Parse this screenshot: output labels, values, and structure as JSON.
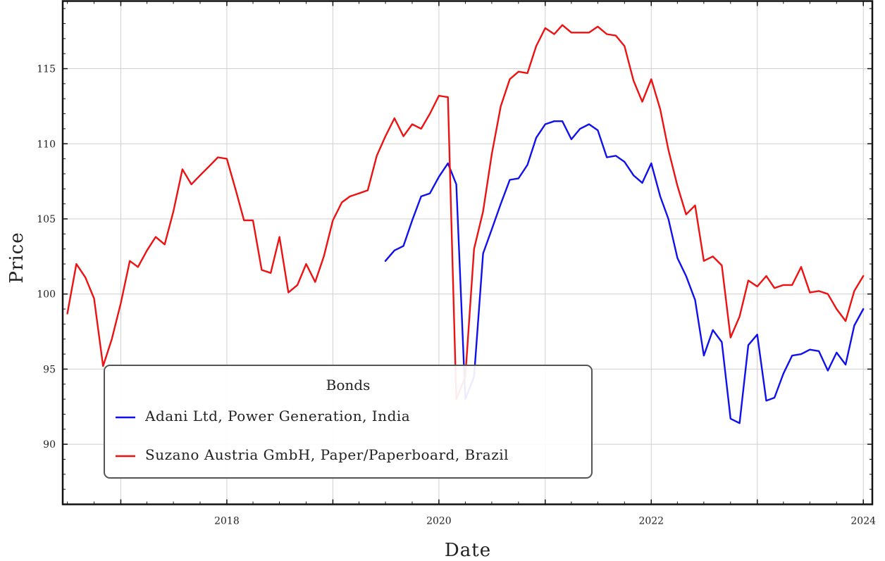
{
  "chart_data": {
    "type": "line",
    "xlabel": "Date",
    "ylabel": "Price",
    "x_ticks": [
      "2018",
      "2020",
      "2022",
      "2024"
    ],
    "y_ticks": [
      90,
      95,
      100,
      105,
      110,
      115
    ],
    "xlim": [
      "2016-06-15",
      "2024-02-01"
    ],
    "ylim": [
      86.0,
      119.5
    ],
    "grid": true,
    "legend": {
      "title": "Bonds",
      "placement": "lower-left"
    },
    "colors": {
      "adani": "#1010ee",
      "suzano": "#ee1111"
    },
    "series": [
      {
        "name": "Adani Ltd, Power Generation, India",
        "color": "#1010ee",
        "x": [
          "2019-07-01",
          "2019-08-01",
          "2019-09-01",
          "2019-10-01",
          "2019-11-01",
          "2019-12-01",
          "2020-01-01",
          "2020-02-01",
          "2020-03-01",
          "2020-04-01",
          "2020-05-01",
          "2020-06-01",
          "2020-07-01",
          "2020-08-01",
          "2020-09-01",
          "2020-10-01",
          "2020-11-01",
          "2020-12-01",
          "2021-01-01",
          "2021-02-01",
          "2021-03-01",
          "2021-04-01",
          "2021-05-01",
          "2021-06-01",
          "2021-07-01",
          "2021-08-01",
          "2021-09-01",
          "2021-10-01",
          "2021-11-01",
          "2021-12-01",
          "2022-01-01",
          "2022-02-01",
          "2022-03-01",
          "2022-04-01",
          "2022-05-01",
          "2022-06-01",
          "2022-07-01",
          "2022-08-01",
          "2022-09-01",
          "2022-10-01",
          "2022-11-01",
          "2022-12-01",
          "2023-01-01",
          "2023-02-01",
          "2023-03-01",
          "2023-04-01",
          "2023-05-01",
          "2023-06-01",
          "2023-07-01",
          "2023-08-01",
          "2023-09-01",
          "2023-10-01",
          "2023-11-01",
          "2023-12-01",
          "2024-01-01"
        ],
        "values": [
          102.2,
          102.9,
          103.2,
          104.9,
          106.5,
          106.7,
          107.8,
          108.7,
          107.3,
          93.0,
          94.5,
          102.7,
          104.3,
          106.0,
          107.6,
          107.7,
          108.6,
          110.4,
          111.3,
          111.5,
          111.5,
          110.3,
          111.0,
          111.3,
          110.9,
          109.1,
          109.2,
          108.8,
          107.9,
          107.4,
          108.7,
          106.5,
          105.0,
          102.4,
          101.2,
          99.6,
          95.9,
          97.6,
          96.8,
          91.7,
          91.4,
          96.6,
          97.3,
          92.9,
          93.1,
          94.7,
          95.9,
          96.0,
          96.3,
          96.2,
          94.9,
          96.1,
          95.3,
          97.9,
          99.0
        ]
      },
      {
        "name": "Suzano Austria GmbH, Paper/Paperboard, Brazil",
        "color": "#ee1111",
        "x": [
          "2016-07-01",
          "2016-08-01",
          "2016-09-01",
          "2016-10-01",
          "2016-11-01",
          "2016-12-01",
          "2017-01-01",
          "2017-02-01",
          "2017-03-01",
          "2017-04-01",
          "2017-05-01",
          "2017-06-01",
          "2017-07-01",
          "2017-08-01",
          "2017-09-01",
          "2017-10-01",
          "2017-11-01",
          "2017-12-01",
          "2018-01-01",
          "2018-02-01",
          "2018-03-01",
          "2018-04-01",
          "2018-05-01",
          "2018-06-01",
          "2018-07-01",
          "2018-08-01",
          "2018-09-01",
          "2018-10-01",
          "2018-11-01",
          "2018-12-01",
          "2019-01-01",
          "2019-02-01",
          "2019-03-01",
          "2019-04-01",
          "2019-05-01",
          "2019-06-01",
          "2019-07-01",
          "2019-08-01",
          "2019-09-01",
          "2019-10-01",
          "2019-11-01",
          "2019-12-01",
          "2020-01-01",
          "2020-02-01",
          "2020-03-01",
          "2020-04-01",
          "2020-05-01",
          "2020-06-01",
          "2020-07-01",
          "2020-08-01",
          "2020-09-01",
          "2020-10-01",
          "2020-11-01",
          "2020-12-01",
          "2021-01-01",
          "2021-02-01",
          "2021-03-01",
          "2021-04-01",
          "2021-05-01",
          "2021-06-01",
          "2021-07-01",
          "2021-08-01",
          "2021-09-01",
          "2021-10-01",
          "2021-11-01",
          "2021-12-01",
          "2022-01-01",
          "2022-02-01",
          "2022-03-01",
          "2022-04-01",
          "2022-05-01",
          "2022-06-01",
          "2022-07-01",
          "2022-08-01",
          "2022-09-01",
          "2022-10-01",
          "2022-11-01",
          "2022-12-01",
          "2023-01-01",
          "2023-02-01",
          "2023-03-01",
          "2023-04-01",
          "2023-05-01",
          "2023-06-01",
          "2023-07-01",
          "2023-08-01",
          "2023-09-01",
          "2023-10-01",
          "2023-11-01",
          "2023-12-01",
          "2024-01-01"
        ],
        "values": [
          98.7,
          102.0,
          101.1,
          99.7,
          95.2,
          97.0,
          99.4,
          102.2,
          101.8,
          102.9,
          103.8,
          103.3,
          105.5,
          108.3,
          107.3,
          107.9,
          108.5,
          109.1,
          109.0,
          106.9,
          104.9,
          104.9,
          101.6,
          101.4,
          103.8,
          100.1,
          100.6,
          102.0,
          100.8,
          102.5,
          104.9,
          106.1,
          106.5,
          106.7,
          106.9,
          109.2,
          110.5,
          111.7,
          110.5,
          111.3,
          111.0,
          112.0,
          113.2,
          113.1,
          93.0,
          94.5,
          103.0,
          105.5,
          109.3,
          112.5,
          114.3,
          114.8,
          114.7,
          116.5,
          117.7,
          117.3,
          117.9,
          117.4,
          117.4,
          117.4,
          117.8,
          117.3,
          117.2,
          116.5,
          114.2,
          112.8,
          114.3,
          112.3,
          109.6,
          107.2,
          105.3,
          105.9,
          102.2,
          102.5,
          101.9,
          97.1,
          98.5,
          100.9,
          100.5,
          101.2,
          100.4,
          100.6,
          100.6,
          101.8,
          100.1,
          100.2,
          100.0,
          99.0,
          98.2,
          100.2,
          101.2
        ]
      }
    ]
  }
}
